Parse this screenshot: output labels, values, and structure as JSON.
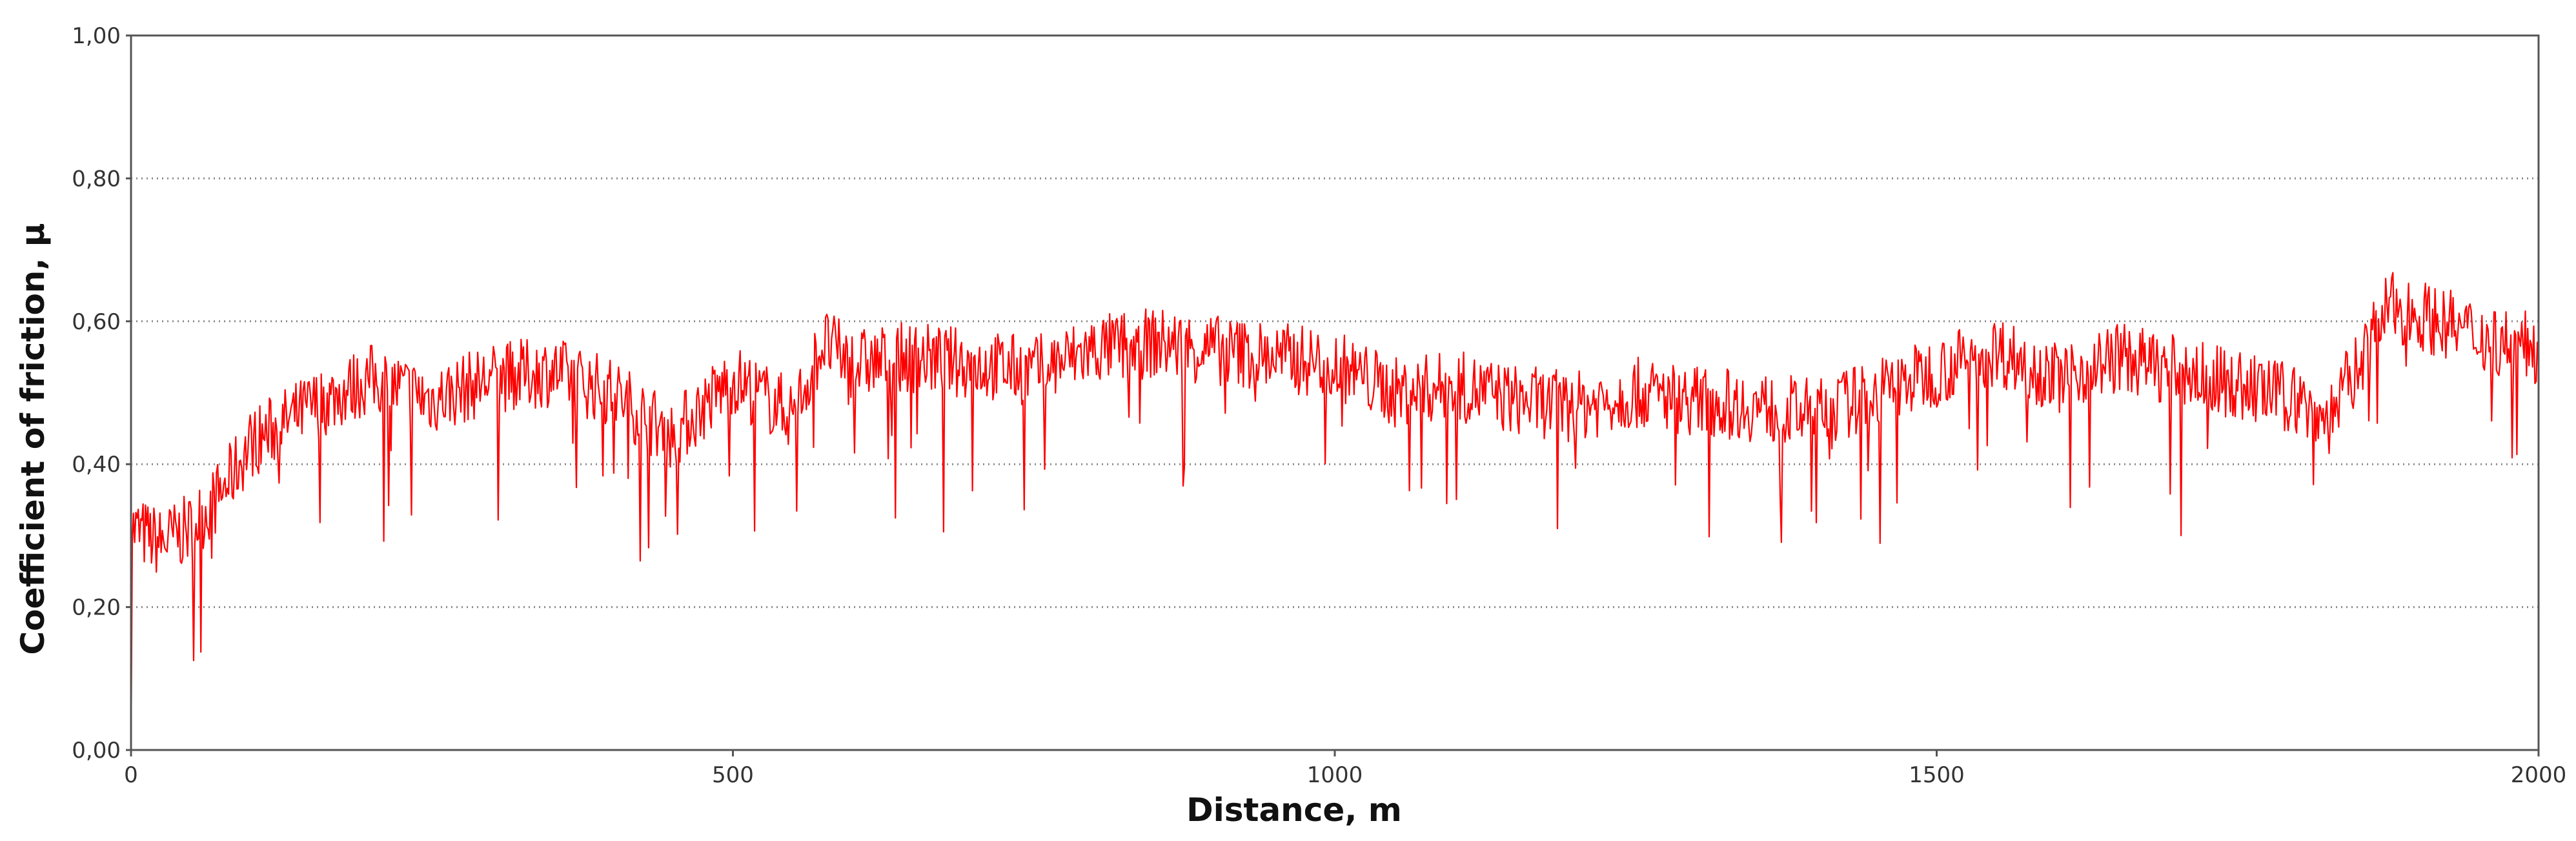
{
  "chart_data": {
    "type": "line",
    "title": "",
    "xlabel": "Distance, m",
    "ylabel": "Coefficient of friction, μ",
    "xlim": [
      0,
      2000
    ],
    "ylim": [
      0.0,
      1.0
    ],
    "x_ticks": [
      {
        "value": 0,
        "label": "0"
      },
      {
        "value": 500,
        "label": "500"
      },
      {
        "value": 1000,
        "label": "1000"
      },
      {
        "value": 1500,
        "label": "1500"
      },
      {
        "value": 2000,
        "label": "2000"
      }
    ],
    "y_ticks": [
      {
        "value": 0.0,
        "label": "0,00"
      },
      {
        "value": 0.2,
        "label": "0,20"
      },
      {
        "value": 0.4,
        "label": "0,40"
      },
      {
        "value": 0.6,
        "label": "0,60"
      },
      {
        "value": 0.8,
        "label": "0,80"
      },
      {
        "value": 1.0,
        "label": "1,00"
      }
    ],
    "grid": {
      "horizontal": true,
      "vertical": false,
      "style": "dotted"
    },
    "legend": "none",
    "series": [
      {
        "color": "#ff0000",
        "x": [
          0,
          25,
          50,
          75,
          100,
          150,
          200,
          250,
          300,
          350,
          400,
          450,
          500,
          550,
          575,
          600,
          650,
          700,
          750,
          800,
          850,
          900,
          950,
          1000,
          1050,
          1100,
          1150,
          1200,
          1250,
          1300,
          1350,
          1400,
          1450,
          1500,
          1550,
          1600,
          1650,
          1700,
          1750,
          1800,
          1825,
          1850,
          1875,
          1900,
          1950,
          2000
        ],
        "y": [
          0.31,
          0.29,
          0.31,
          0.36,
          0.43,
          0.48,
          0.52,
          0.49,
          0.52,
          0.53,
          0.5,
          0.44,
          0.52,
          0.47,
          0.57,
          0.54,
          0.55,
          0.54,
          0.53,
          0.56,
          0.57,
          0.56,
          0.55,
          0.54,
          0.5,
          0.51,
          0.49,
          0.48,
          0.5,
          0.49,
          0.48,
          0.47,
          0.5,
          0.53,
          0.56,
          0.52,
          0.55,
          0.53,
          0.51,
          0.49,
          0.46,
          0.54,
          0.62,
          0.61,
          0.58,
          0.56
        ],
        "fluctuation_amplitude": 0.05,
        "samples": 2000
      }
    ]
  },
  "colors": {
    "background": "#ffffff",
    "axis": "#555555",
    "grid": "#8a8a8a",
    "line": "#ff0000"
  }
}
